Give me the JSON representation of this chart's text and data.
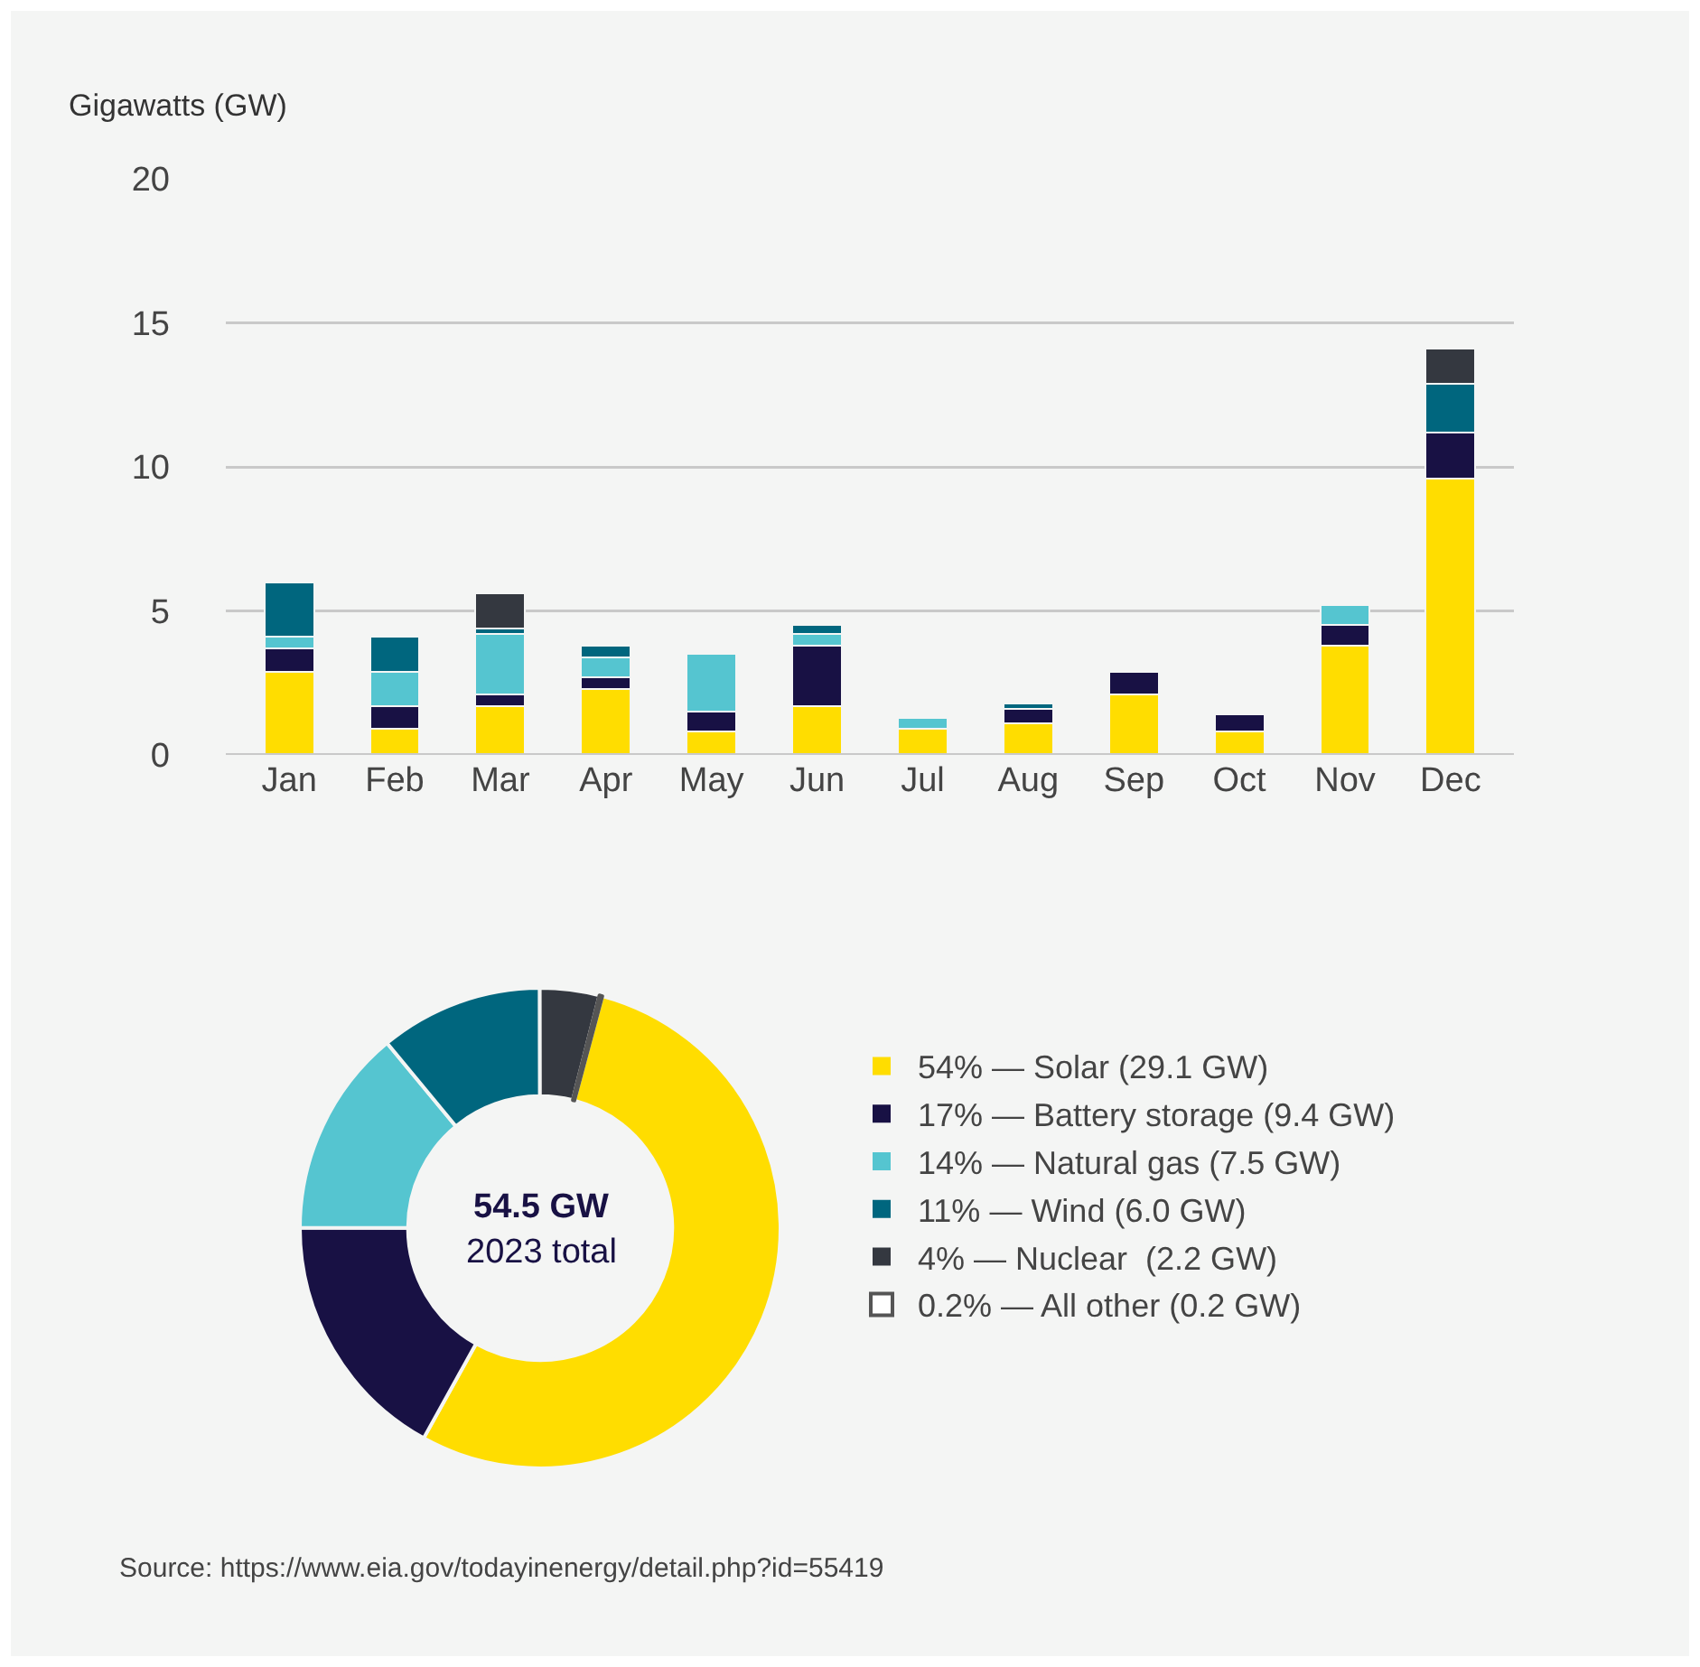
{
  "chart_data": [
    {
      "type": "bar",
      "stacked": true,
      "ylabel": "Gigawatts (GW)",
      "categories": [
        "Jan",
        "Feb",
        "Mar",
        "Apr",
        "May",
        "Jun",
        "Jul",
        "Aug",
        "Sep",
        "Oct",
        "Nov",
        "Dec"
      ],
      "series": [
        {
          "color": "#ffdd00",
          "values": [
            2.9,
            0.9,
            1.7,
            2.3,
            0.8,
            1.7,
            0.9,
            1.1,
            2.1,
            0.8,
            3.8,
            9.6
          ]
        },
        {
          "color": "#181144",
          "values": [
            0.8,
            0.8,
            0.4,
            0.4,
            0.7,
            2.1,
            null,
            0.5,
            0.8,
            0.6,
            0.7,
            1.6
          ]
        },
        {
          "color": "#55c5d0",
          "values": [
            0.4,
            1.2,
            2.1,
            0.7,
            2.0,
            0.4,
            0.4,
            null,
            null,
            null,
            0.7,
            null
          ]
        },
        {
          "color": "#00667e",
          "values": [
            1.9,
            1.2,
            0.2,
            0.4,
            null,
            0.3,
            null,
            0.2,
            null,
            null,
            null,
            1.7
          ]
        },
        {
          "color": "#343840",
          "values": [
            null,
            null,
            1.2,
            null,
            null,
            null,
            null,
            null,
            null,
            null,
            null,
            1.2
          ]
        }
      ],
      "ylim": [
        0,
        20
      ],
      "yticks": [
        0,
        5,
        10,
        15,
        20
      ],
      "grid": "y"
    },
    {
      "type": "donut",
      "categories": [
        "54% — Solar (29.1 GW)",
        "17% — Battery storage (9.4 GW)",
        "14% — Natural gas (7.5 GW)",
        "11% — Wind (6.0 GW)",
        "4% — Nuclear  (2.2 GW)",
        "0.2% — All other (0.2 GW)"
      ],
      "values": [
        54,
        17,
        14,
        11,
        4,
        0.2
      ],
      "colors": [
        "#ffdd00",
        "#181144",
        "#55c5d0",
        "#00667e",
        "#343840",
        "#ffffff"
      ],
      "legend": "right",
      "annotations": [
        "54.5 GW",
        "2023 total",
        "Source: https://www.eia.gov/todayinenergy/detail.php?id=55419"
      ]
    }
  ]
}
